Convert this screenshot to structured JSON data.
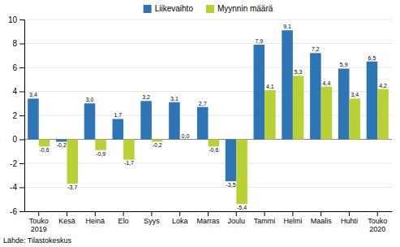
{
  "chart_data": {
    "type": "bar",
    "categories": [
      "Touko\n2019",
      "Kesä",
      "Heinä",
      "Elo",
      "Syys",
      "Loka",
      "Marras",
      "Joulu",
      "Tammi",
      "Helmi",
      "Maalis",
      "Huhti",
      "Touko\n2020"
    ],
    "series": [
      {
        "name": "Liikevaihto",
        "color": "#2e75b6",
        "values": [
          3.4,
          -0.2,
          3.0,
          1.7,
          3.2,
          3.1,
          2.7,
          -3.5,
          7.9,
          9.1,
          7.2,
          5.9,
          6.5
        ],
        "value_labels": [
          "3,4",
          "-0,2",
          "3,0",
          "1,7",
          "3,2",
          "3,1",
          "2,7",
          "-3,5",
          "7,9",
          "9,1",
          "7,2",
          "5,9",
          "6,5"
        ]
      },
      {
        "name": "Myynnin määrä",
        "color": "#bad135",
        "values": [
          -0.6,
          -3.7,
          -0.9,
          -1.7,
          -0.2,
          0.0,
          -0.6,
          -5.4,
          4.1,
          5.3,
          4.4,
          3.4,
          4.2
        ],
        "value_labels": [
          "-0,6",
          "-3,7",
          "-0,9",
          "-1,7",
          "-0,2",
          "0,0",
          "-0,6",
          "-5,4",
          "4,1",
          "5,3",
          "4,4",
          "3,4",
          "4,2"
        ]
      }
    ],
    "ylim": [
      -6,
      10
    ],
    "yticks": [
      -6,
      -4,
      -2,
      0,
      2,
      4,
      6,
      8,
      10
    ],
    "grid": true,
    "legend": "top",
    "data_labels": true,
    "annotations": [
      "Lähde: Tilastokeskus"
    ]
  }
}
